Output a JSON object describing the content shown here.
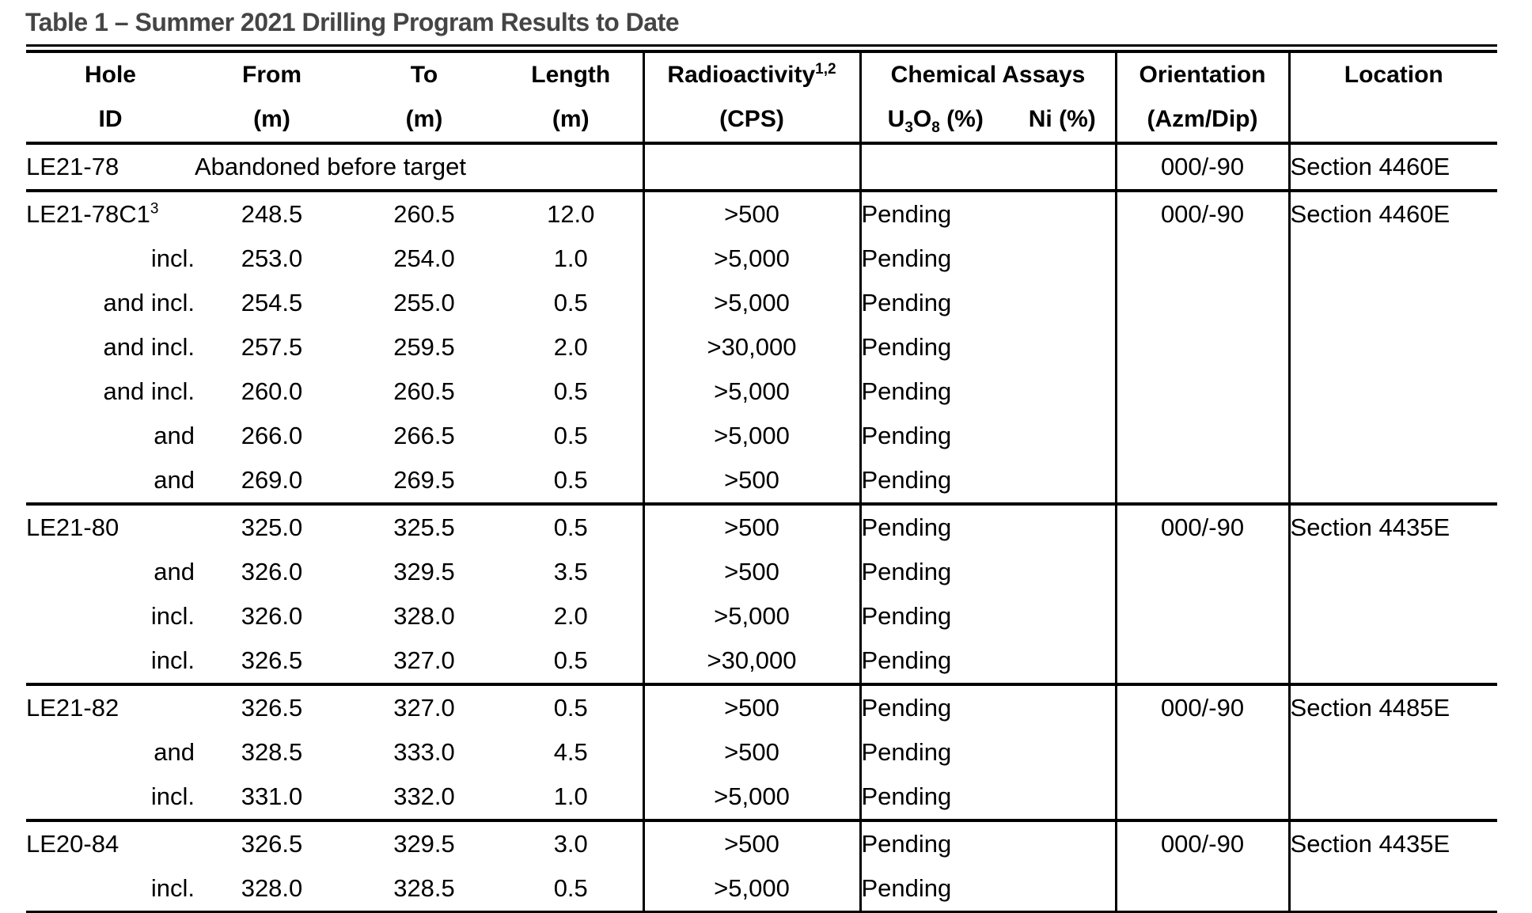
{
  "page": {
    "title": "Table 1 – Summer 2021 Drilling Program Results to Date"
  },
  "table": {
    "header": {
      "col_hole_l1": "Hole",
      "col_hole_l2": "ID",
      "col_from_l1": "From",
      "col_from_l2": "(m)",
      "col_to_l1": "To",
      "col_to_l2": "(m)",
      "col_length_l1": "Length",
      "col_length_l2": "(m)",
      "col_rad_l1": "Radioactivity",
      "col_rad_sup": "1,2",
      "col_rad_l2": "(CPS)",
      "col_assays": "Chemical Assays",
      "col_u3o8": {
        "p1": "U",
        "s1": "3",
        "p2": "O",
        "s2": "8",
        "p3": " (%)"
      },
      "col_ni": "Ni (%)",
      "col_orient_l1": "Orientation",
      "col_orient_l2": "(Azm/Dip)",
      "col_loc": "Location"
    },
    "rows": [
      {
        "hole": "LE21-78",
        "hole_sup": "",
        "hole_align": "left",
        "merged": "Abandoned before target",
        "rad": "",
        "u3o8": "",
        "ni": "",
        "orient": "000/-90",
        "loc": "Section 4460E",
        "group_start": false
      },
      {
        "hole": "LE21-78C1",
        "hole_sup": "3",
        "hole_align": "left",
        "from": "248.5",
        "to": "260.5",
        "length": "12.0",
        "rad": ">500",
        "u3o8": "Pending",
        "ni": "",
        "orient": "000/-90",
        "loc": "Section 4460E",
        "group_start": true
      },
      {
        "hole": "incl.",
        "hole_sup": "",
        "hole_align": "right",
        "from": "253.0",
        "to": "254.0",
        "length": "1.0",
        "rad": ">5,000",
        "u3o8": "Pending",
        "ni": "",
        "orient": "",
        "loc": "",
        "group_start": false
      },
      {
        "hole": "and incl.",
        "hole_sup": "",
        "hole_align": "right",
        "from": "254.5",
        "to": "255.0",
        "length": "0.5",
        "rad": ">5,000",
        "u3o8": "Pending",
        "ni": "",
        "orient": "",
        "loc": "",
        "group_start": false
      },
      {
        "hole": "and incl.",
        "hole_sup": "",
        "hole_align": "right",
        "from": "257.5",
        "to": "259.5",
        "length": "2.0",
        "rad": ">30,000",
        "u3o8": "Pending",
        "ni": "",
        "orient": "",
        "loc": "",
        "group_start": false
      },
      {
        "hole": "and incl.",
        "hole_sup": "",
        "hole_align": "right",
        "from": "260.0",
        "to": "260.5",
        "length": "0.5",
        "rad": ">5,000",
        "u3o8": "Pending",
        "ni": "",
        "orient": "",
        "loc": "",
        "group_start": false
      },
      {
        "hole": "and",
        "hole_sup": "",
        "hole_align": "right",
        "from": "266.0",
        "to": "266.5",
        "length": "0.5",
        "rad": ">5,000",
        "u3o8": "Pending",
        "ni": "",
        "orient": "",
        "loc": "",
        "group_start": false
      },
      {
        "hole": "and",
        "hole_sup": "",
        "hole_align": "right",
        "from": "269.0",
        "to": "269.5",
        "length": "0.5",
        "rad": ">500",
        "u3o8": "Pending",
        "ni": "",
        "orient": "",
        "loc": "",
        "group_start": false
      },
      {
        "hole": "LE21-80",
        "hole_sup": "",
        "hole_align": "left",
        "from": "325.0",
        "to": "325.5",
        "length": "0.5",
        "rad": ">500",
        "u3o8": "Pending",
        "ni": "",
        "orient": "000/-90",
        "loc": "Section 4435E",
        "group_start": true
      },
      {
        "hole": "and",
        "hole_sup": "",
        "hole_align": "right",
        "from": "326.0",
        "to": "329.5",
        "length": "3.5",
        "rad": ">500",
        "u3o8": "Pending",
        "ni": "",
        "orient": "",
        "loc": "",
        "group_start": false
      },
      {
        "hole": "incl.",
        "hole_sup": "",
        "hole_align": "right",
        "from": "326.0",
        "to": "328.0",
        "length": "2.0",
        "rad": ">5,000",
        "u3o8": "Pending",
        "ni": "",
        "orient": "",
        "loc": "",
        "group_start": false
      },
      {
        "hole": "incl.",
        "hole_sup": "",
        "hole_align": "right",
        "from": "326.5",
        "to": "327.0",
        "length": "0.5",
        "rad": ">30,000",
        "u3o8": "Pending",
        "ni": "",
        "orient": "",
        "loc": "",
        "group_start": false
      },
      {
        "hole": "LE21-82",
        "hole_sup": "",
        "hole_align": "left",
        "from": "326.5",
        "to": "327.0",
        "length": "0.5",
        "rad": ">500",
        "u3o8": "Pending",
        "ni": "",
        "orient": "000/-90",
        "loc": "Section 4485E",
        "group_start": true
      },
      {
        "hole": "and",
        "hole_sup": "",
        "hole_align": "right",
        "from": "328.5",
        "to": "333.0",
        "length": "4.5",
        "rad": ">500",
        "u3o8": "Pending",
        "ni": "",
        "orient": "",
        "loc": "",
        "group_start": false
      },
      {
        "hole": "incl.",
        "hole_sup": "",
        "hole_align": "right",
        "from": "331.0",
        "to": "332.0",
        "length": "1.0",
        "rad": ">5,000",
        "u3o8": "Pending",
        "ni": "",
        "orient": "",
        "loc": "",
        "group_start": false
      },
      {
        "hole": "LE20-84",
        "hole_sup": "",
        "hole_align": "left",
        "from": "326.5",
        "to": "329.5",
        "length": "3.0",
        "rad": ">500",
        "u3o8": "Pending",
        "ni": "",
        "orient": "000/-90",
        "loc": "Section 4435E",
        "group_start": true
      },
      {
        "hole": "incl.",
        "hole_sup": "",
        "hole_align": "right",
        "from": "328.0",
        "to": "328.5",
        "length": "0.5",
        "rad": ">5,000",
        "u3o8": "Pending",
        "ni": "",
        "orient": "",
        "loc": "",
        "group_start": false
      }
    ]
  }
}
